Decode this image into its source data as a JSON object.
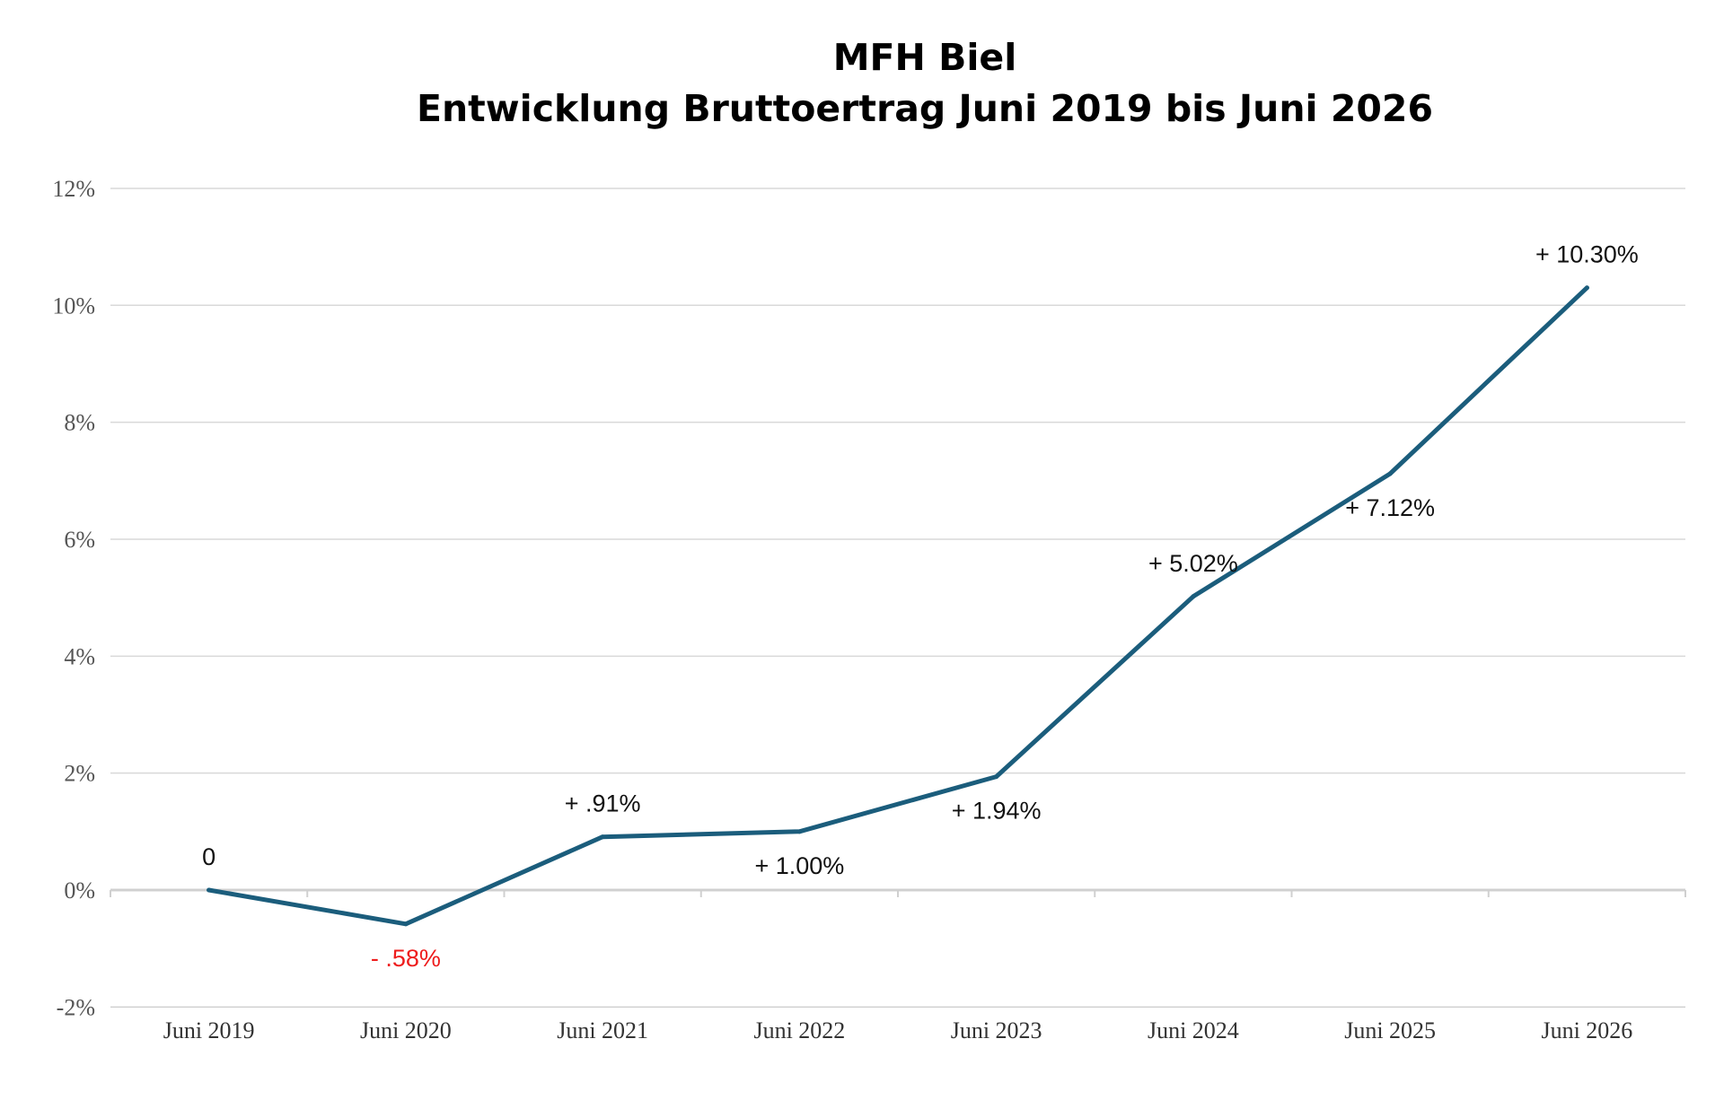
{
  "colors": {
    "line": "#1b5d7c",
    "grid": "#d9d9d9",
    "axis": "#d0d0d0",
    "label": "#111111",
    "negative_label": "#ee1c1c"
  },
  "chart_data": {
    "type": "line",
    "title_lines": [
      "MFH Biel",
      "Entwicklung Bruttoertrag Juni 2019 bis Juni 2026"
    ],
    "categories": [
      "Juni 2019",
      "Juni 2020",
      "Juni 2021",
      "Juni 2022",
      "Juni 2023",
      "Juni 2024",
      "Juni 2025",
      "Juni 2026"
    ],
    "series": [
      {
        "values": [
          0,
          -0.58,
          0.91,
          1.0,
          1.94,
          5.02,
          7.12,
          10.3
        ],
        "data_labels": [
          "0",
          "- .58%",
          "+ .91%",
          "+ 1.00%",
          "+ 1.94%",
          "+ 5.02%",
          "+ 7.12%",
          "+ 10.30%"
        ],
        "label_positions": [
          "above",
          "below",
          "above",
          "below",
          "below",
          "above",
          "below",
          "above"
        ]
      }
    ],
    "yticks": [
      "12%",
      "10%",
      "8%",
      "6%",
      "4%",
      "2%",
      "0%",
      "-2%"
    ],
    "ytick_values": [
      12,
      10,
      8,
      6,
      4,
      2,
      0,
      -2
    ],
    "ylim": [
      -2,
      12
    ],
    "xlabel": "",
    "ylabel": "",
    "grid": true,
    "legend": "none"
  }
}
